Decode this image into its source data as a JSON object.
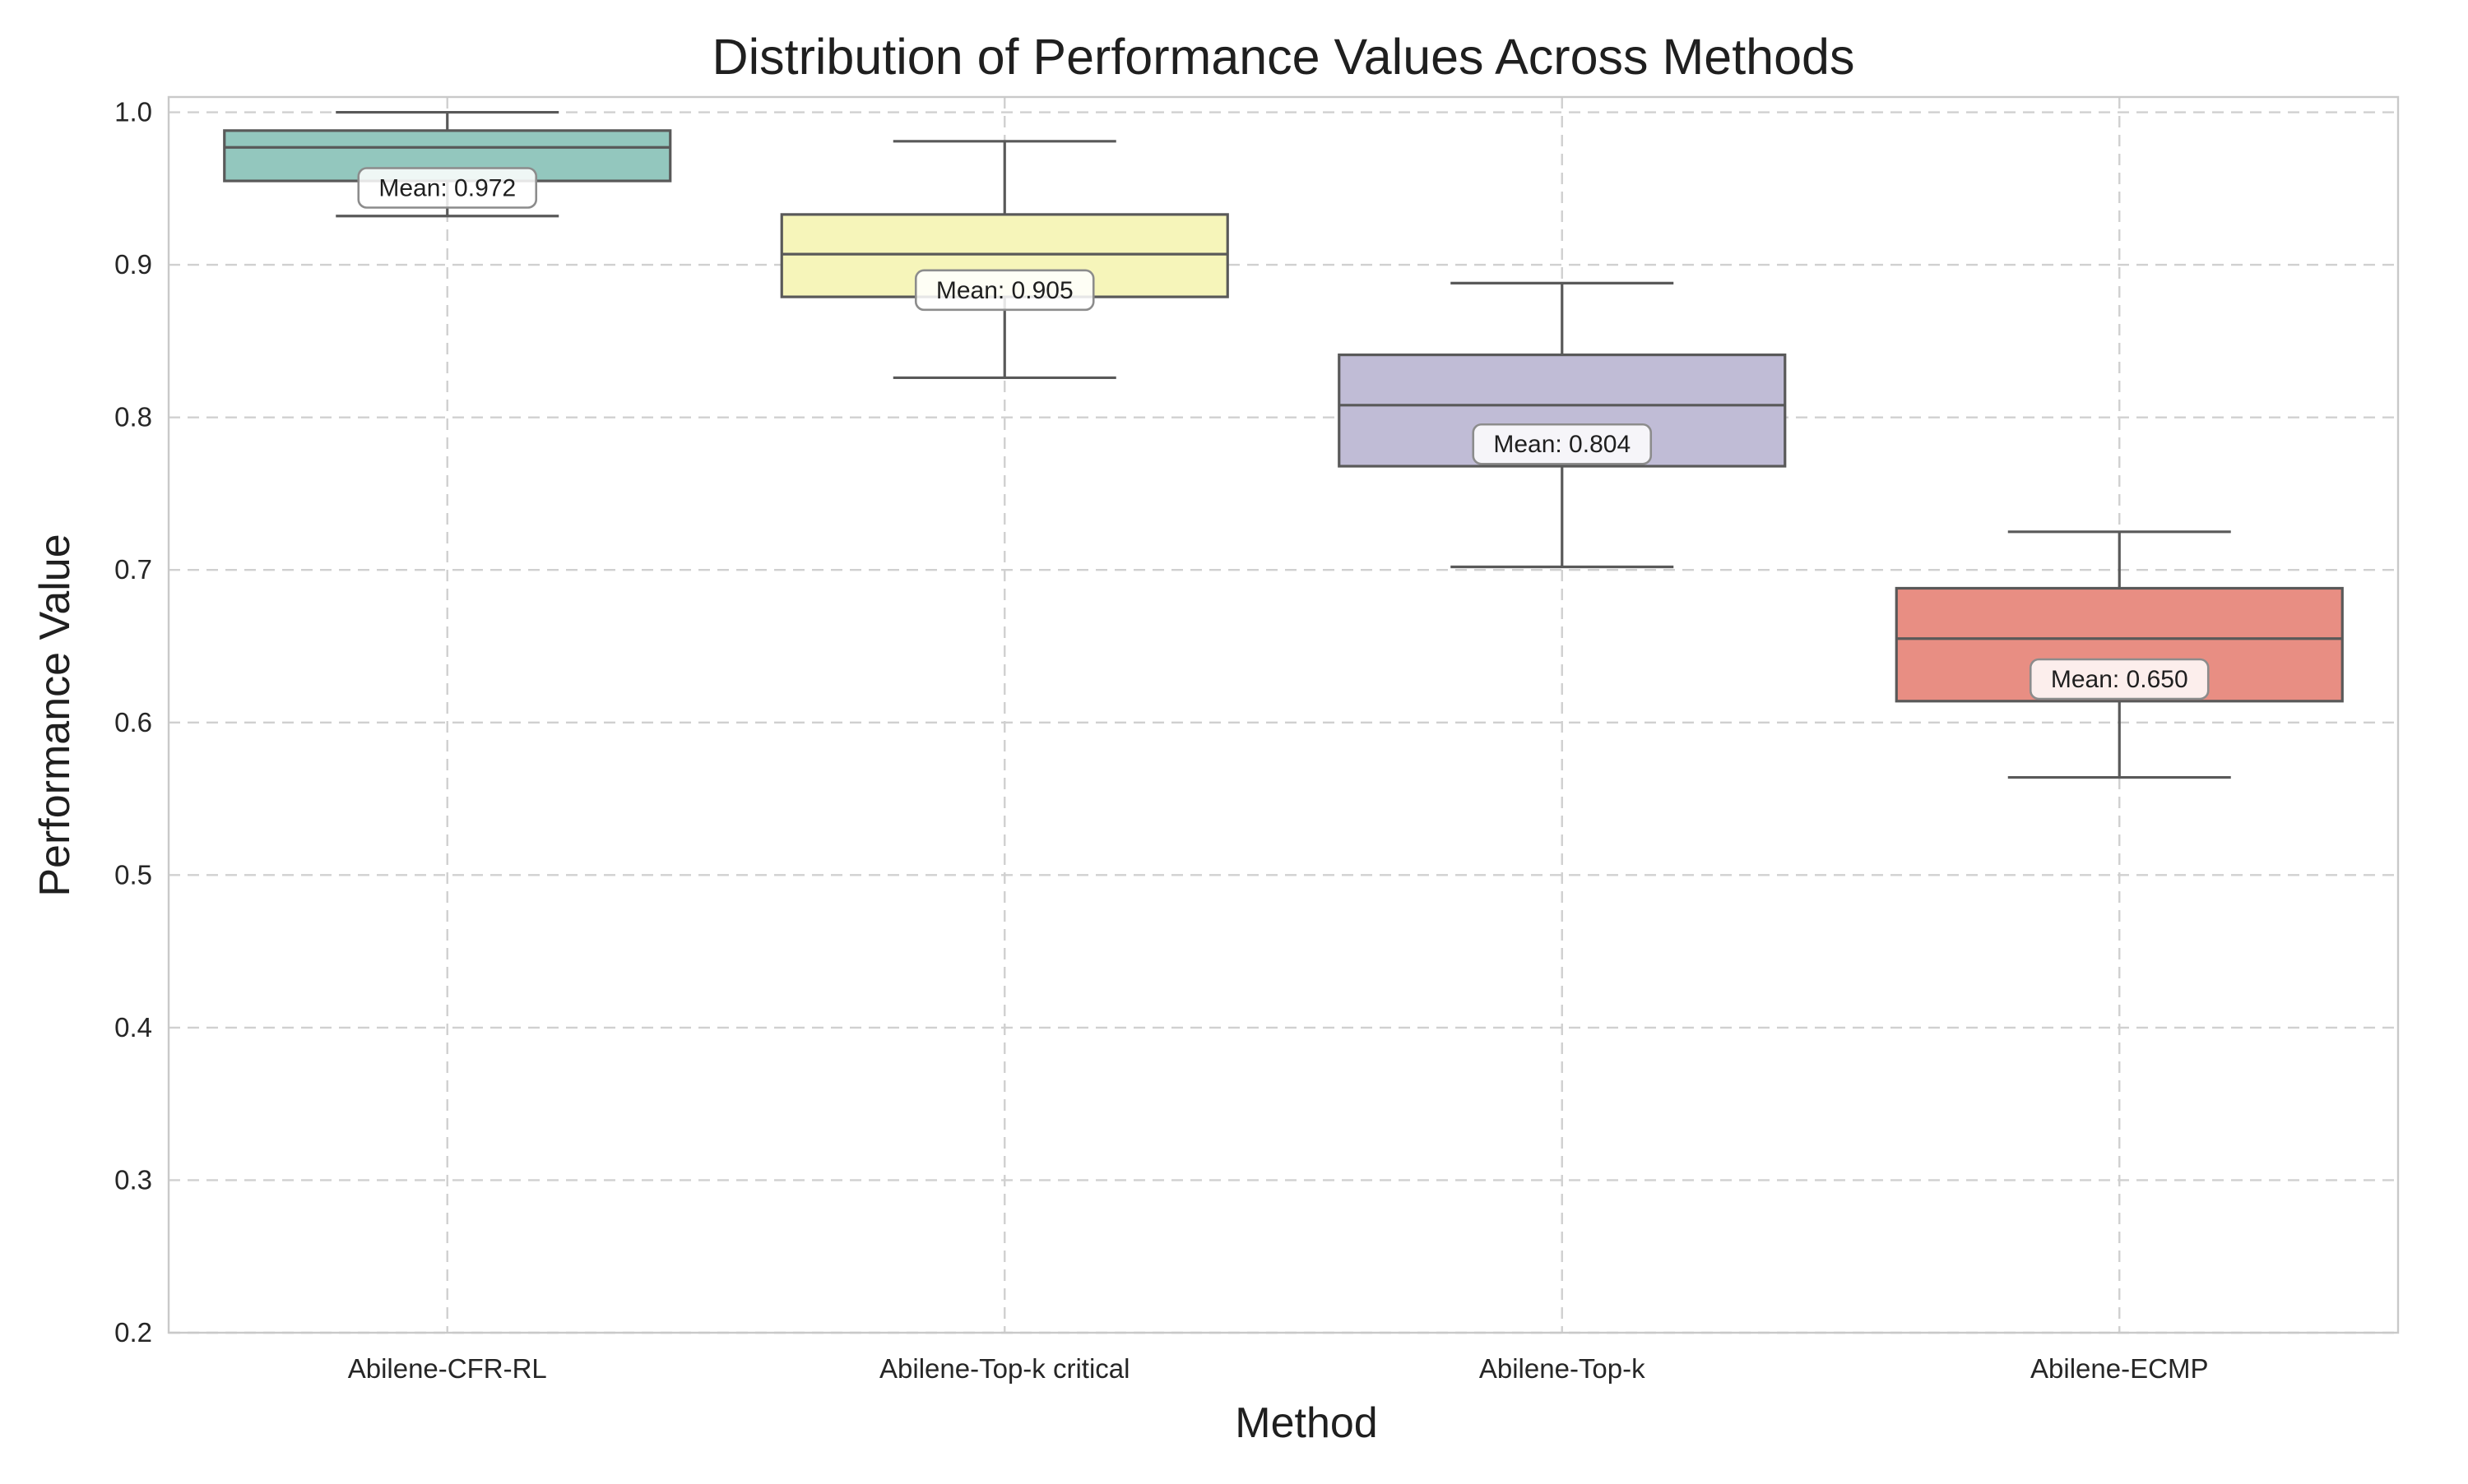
{
  "chart_data": {
    "type": "box",
    "title": "Distribution of Performance Values Across Methods",
    "xlabel": "Method",
    "ylabel": "Performance Value",
    "ylim": [
      0.2,
      1.01
    ],
    "yticks": [
      0.2,
      0.3,
      0.4,
      0.5,
      0.6,
      0.7,
      0.8,
      0.9,
      1.0
    ],
    "grid": true,
    "categories": [
      "Abilene-CFR-RL",
      "Abilene-Top-k critical",
      "Abilene-Top-k",
      "Abilene-ECMP"
    ],
    "boxes": [
      {
        "category": "Abilene-CFR-RL",
        "whisker_low": 0.932,
        "q1": 0.955,
        "median": 0.977,
        "q3": 0.988,
        "whisker_high": 1.0,
        "mean": 0.972,
        "mean_label": "Mean: 0.972",
        "color": "#93c7be"
      },
      {
        "category": "Abilene-Top-k critical",
        "whisker_low": 0.826,
        "q1": 0.879,
        "median": 0.907,
        "q3": 0.933,
        "whisker_high": 0.981,
        "mean": 0.905,
        "mean_label": "Mean: 0.905",
        "color": "#f6f5ba"
      },
      {
        "category": "Abilene-Top-k",
        "whisker_low": 0.702,
        "q1": 0.768,
        "median": 0.808,
        "q3": 0.841,
        "whisker_high": 0.888,
        "mean": 0.804,
        "mean_label": "Mean: 0.804",
        "color": "#c0bcd6"
      },
      {
        "category": "Abilene-ECMP",
        "whisker_low": 0.564,
        "q1": 0.614,
        "median": 0.655,
        "q3": 0.688,
        "whisker_high": 0.725,
        "mean": 0.65,
        "mean_label": "Mean: 0.650",
        "color": "#e88e83"
      }
    ]
  }
}
